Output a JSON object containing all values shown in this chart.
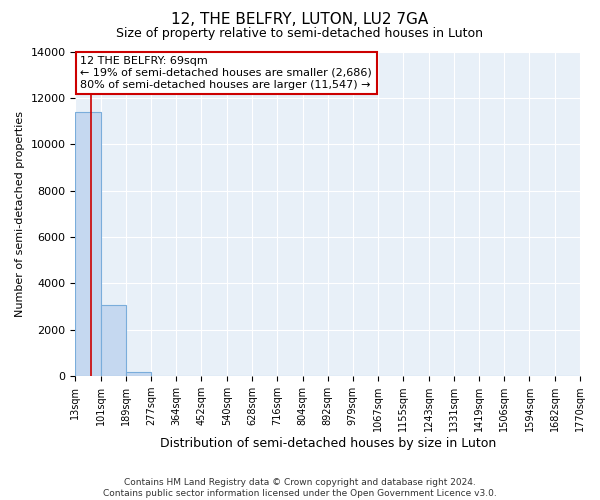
{
  "title": "12, THE BELFRY, LUTON, LU2 7GA",
  "subtitle": "Size of property relative to semi-detached houses in Luton",
  "xlabel": "Distribution of semi-detached houses by size in Luton",
  "ylabel": "Number of semi-detached properties",
  "bin_edges": [
    13,
    101,
    189,
    277,
    364,
    452,
    540,
    628,
    716,
    804,
    892,
    979,
    1067,
    1155,
    1243,
    1331,
    1419,
    1506,
    1594,
    1682,
    1770
  ],
  "bar_heights": [
    11400,
    3050,
    175,
    0,
    0,
    0,
    0,
    0,
    0,
    0,
    0,
    0,
    0,
    0,
    0,
    0,
    0,
    0,
    0,
    0
  ],
  "bar_color": "#c5d8f0",
  "bar_edge_color": "#7aaddb",
  "property_size": 69,
  "vline_color": "#cc0000",
  "ylim": [
    0,
    14000
  ],
  "annotation_text": "12 THE BELFRY: 69sqm\n← 19% of semi-detached houses are smaller (2,686)\n80% of semi-detached houses are larger (11,547) →",
  "annotation_box_color": "#cc0000",
  "background_color": "#e8f0f8",
  "grid_color": "#ffffff",
  "footer_line1": "Contains HM Land Registry data © Crown copyright and database right 2024.",
  "footer_line2": "Contains public sector information licensed under the Open Government Licence v3.0.",
  "tick_labels": [
    "13sqm",
    "101sqm",
    "189sqm",
    "277sqm",
    "364sqm",
    "452sqm",
    "540sqm",
    "628sqm",
    "716sqm",
    "804sqm",
    "892sqm",
    "979sqm",
    "1067sqm",
    "1155sqm",
    "1243sqm",
    "1331sqm",
    "1419sqm",
    "1506sqm",
    "1594sqm",
    "1682sqm",
    "1770sqm"
  ],
  "title_fontsize": 11,
  "subtitle_fontsize": 9,
  "xlabel_fontsize": 9,
  "ylabel_fontsize": 8,
  "tick_fontsize": 7,
  "annotation_fontsize": 8,
  "footer_fontsize": 6.5
}
